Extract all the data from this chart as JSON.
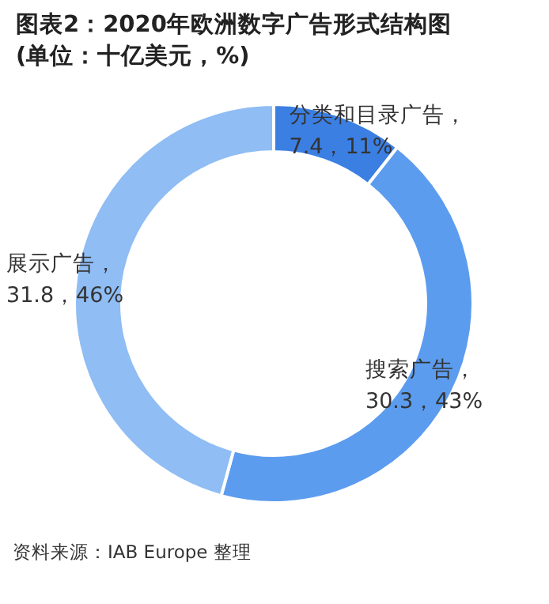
{
  "chart_data": {
    "type": "donut",
    "title": "图表2：2020年欧洲数字广告形式结构图",
    "subtitle": "(单位：十亿美元，%)",
    "categories": [
      "分类和目录广告",
      "搜索广告",
      "展示广告"
    ],
    "values": [
      7.4,
      30.3,
      31.8
    ],
    "value_labels": [
      "，7.4，11%",
      "，30.3，43%",
      "，31.8，46%"
    ],
    "colors": [
      "#3b7fe3",
      "#5c9cef",
      "#8fbdf4"
    ],
    "annotations": [
      "资料来源：IAB Europe 整理"
    ]
  }
}
